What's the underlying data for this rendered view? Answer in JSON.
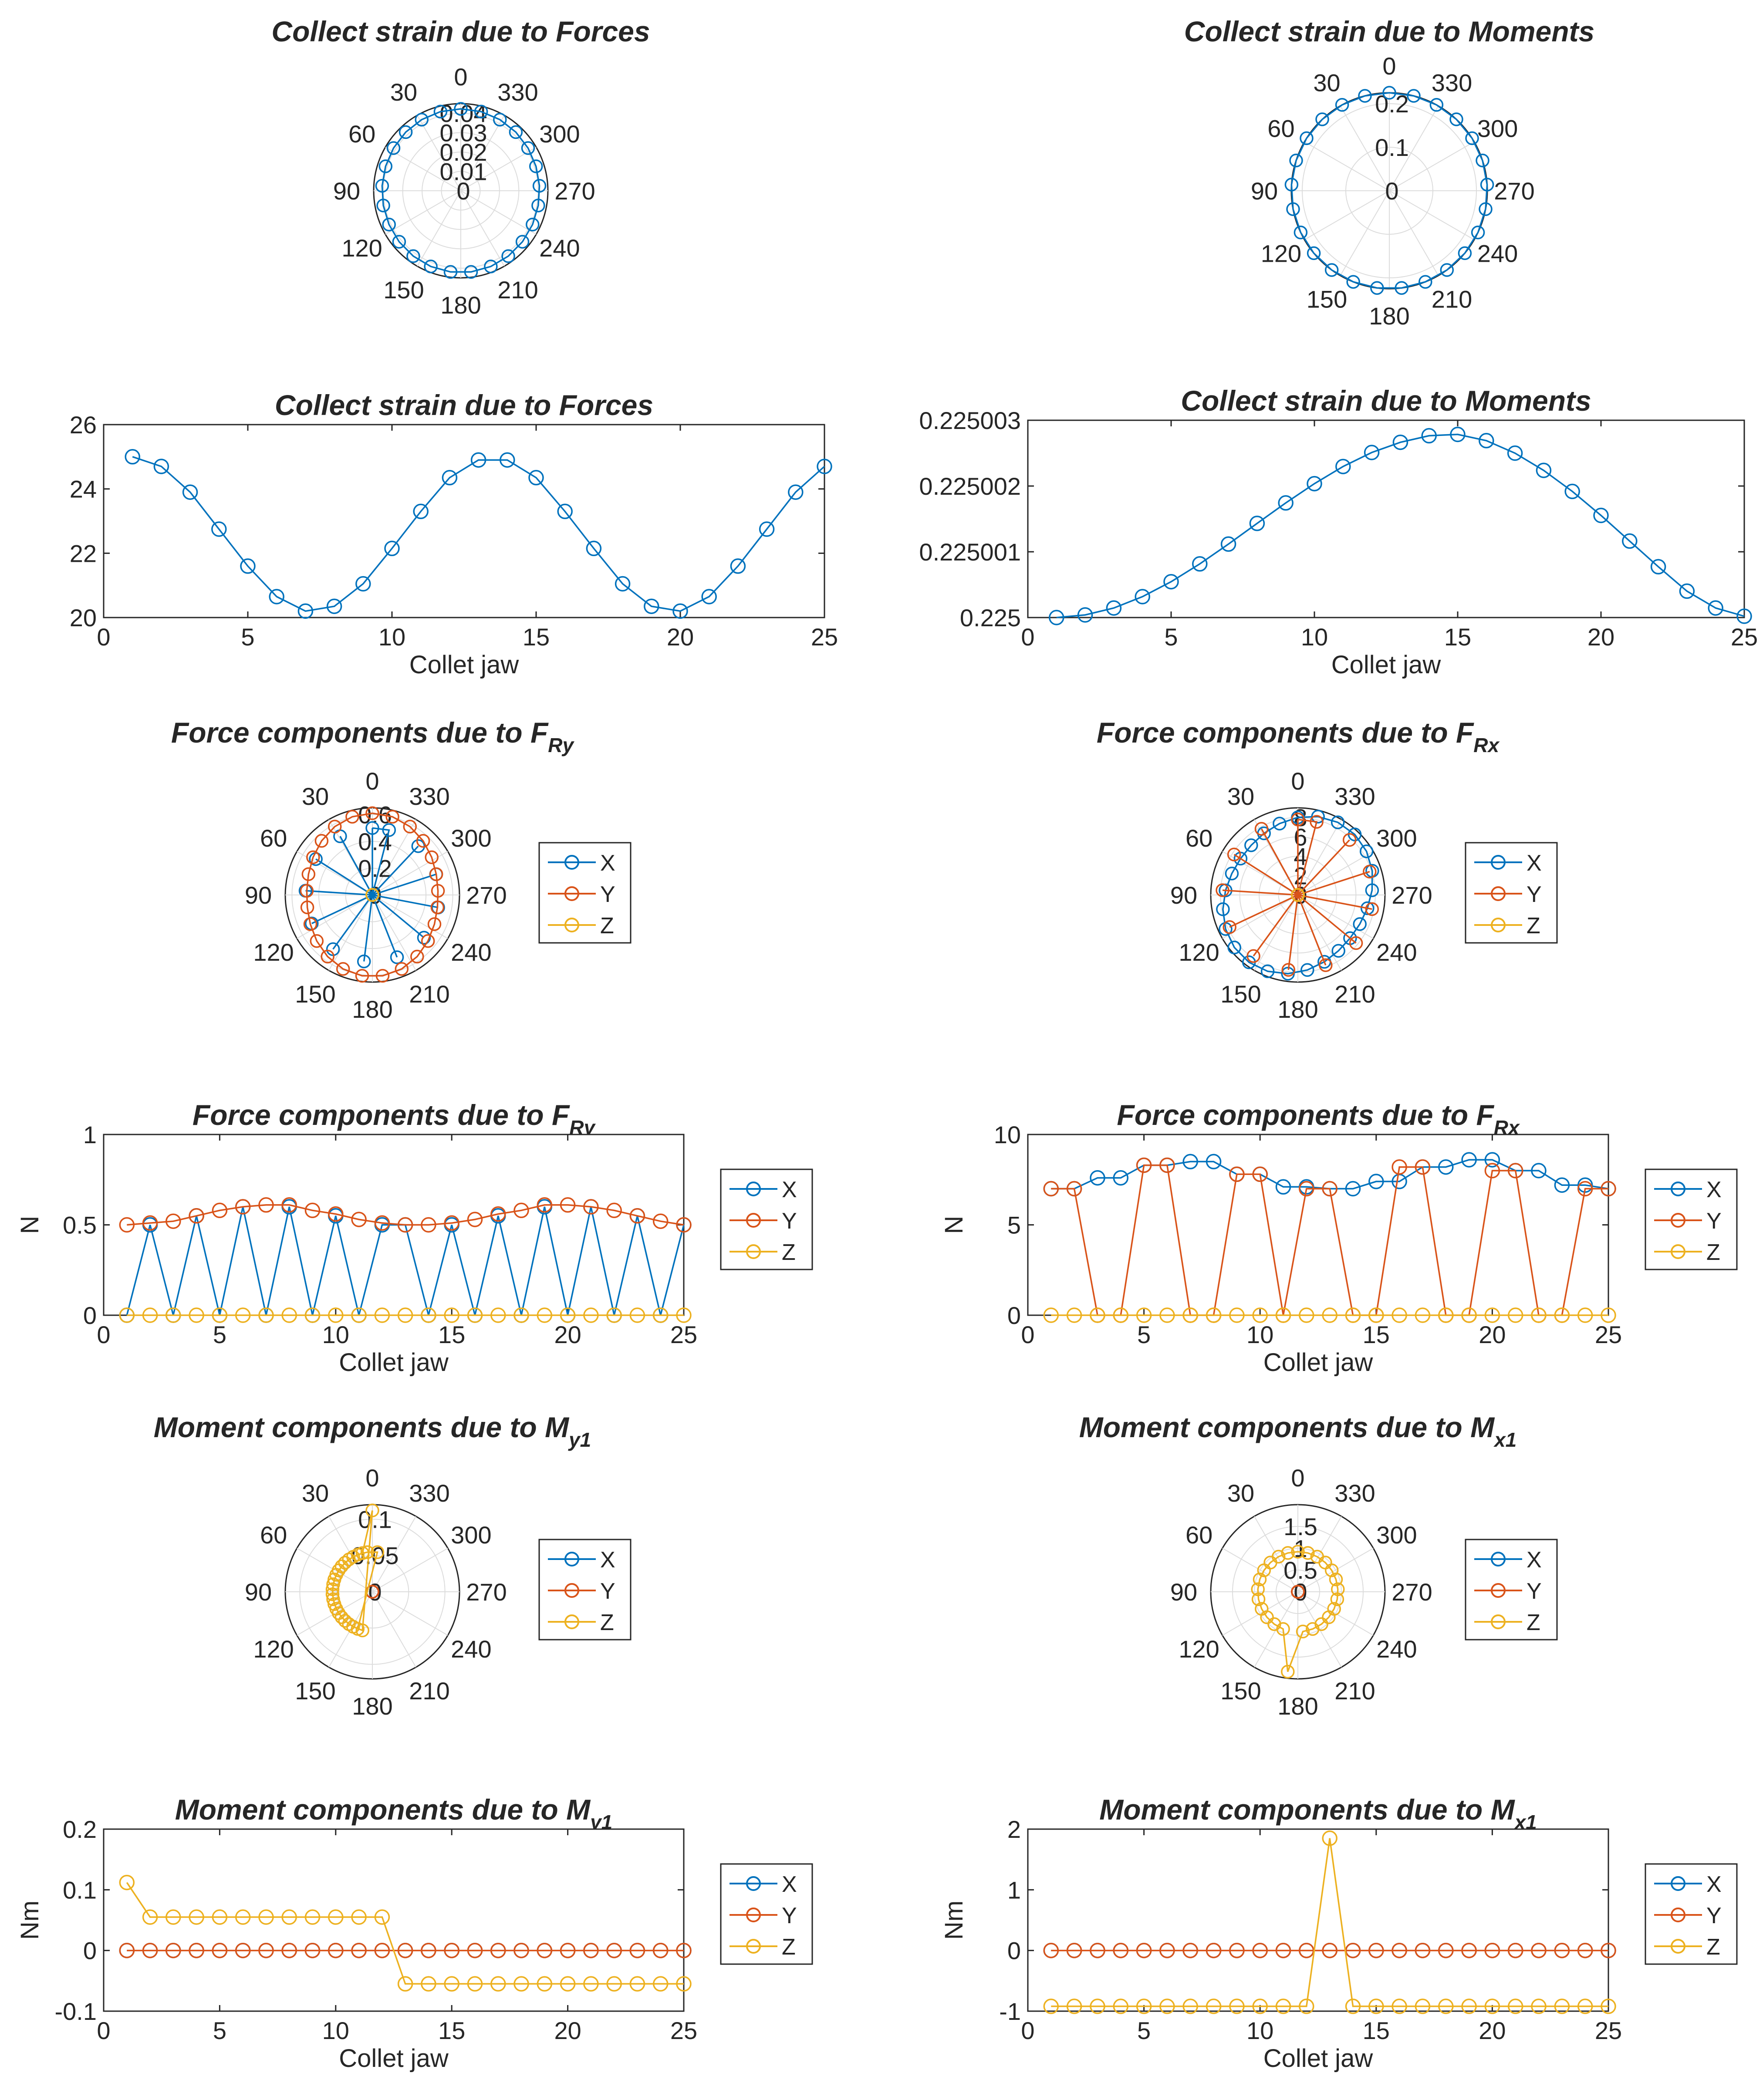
{
  "figure_title": "",
  "chart_data": [
    {
      "type": "polar",
      "title_main": "Collect strain due to Forces",
      "title_sub": "",
      "rticks": [
        0,
        0.01,
        0.02,
        0.03,
        0.04
      ],
      "rmax": 0.045,
      "thetaticks": [
        "0",
        "30",
        "60",
        "90",
        "120",
        "150",
        "180",
        "210",
        "240",
        "270",
        "300",
        "330"
      ],
      "series": [
        {
          "name": "strain",
          "color": "#0072BD",
          "mode": "sin2",
          "center": 0.0415,
          "amp": 0.0008,
          "phase": 0
        }
      ]
    },
    {
      "type": "polar",
      "title_main": "Collect strain due to Moments",
      "title_sub": "",
      "rticks": [
        0,
        0.1,
        0.2
      ],
      "rmax": 0.225,
      "thetaticks": [
        "0",
        "30",
        "60",
        "90",
        "120",
        "150",
        "180",
        "210",
        "240",
        "270",
        "300",
        "330"
      ],
      "series": [
        {
          "name": "strain",
          "color": "#0072BD",
          "mode": "const",
          "value": 0.225
        }
      ]
    },
    {
      "type": "line",
      "title_main": "Collect strain due to Forces",
      "title_sub": "",
      "xlabel": "Collet jaw",
      "ylabel": "",
      "xlim": [
        0,
        25
      ],
      "ylim": [
        20,
        26
      ],
      "xticks": [
        0,
        5,
        10,
        15,
        20,
        25
      ],
      "yticks": [
        20,
        22,
        24,
        26
      ],
      "x": [
        1,
        2,
        3,
        4,
        5,
        6,
        7,
        8,
        9,
        10,
        11,
        12,
        13,
        14,
        15,
        16,
        17,
        18,
        19,
        20,
        21,
        22,
        23,
        24,
        25
      ],
      "series": [
        {
          "name": "strain",
          "color": "#0072BD",
          "values": [
            25.0,
            24.7,
            23.9,
            22.75,
            21.6,
            20.65,
            20.2,
            20.35,
            21.05,
            22.15,
            23.3,
            24.35,
            24.9,
            24.9,
            24.35,
            23.3,
            22.15,
            21.05,
            20.35,
            20.2,
            20.65,
            21.6,
            22.75,
            23.9,
            24.7
          ]
        }
      ],
      "legend": []
    },
    {
      "type": "line",
      "title_main": "Collect strain due to Moments",
      "title_sub": "",
      "xlabel": "Collet jaw",
      "ylabel": "",
      "xlim": [
        0,
        25
      ],
      "ylim": [
        0.225,
        0.225003
      ],
      "xticks": [
        0,
        5,
        10,
        15,
        20,
        25
      ],
      "yticks": [
        0.225,
        0.225001,
        0.225002,
        0.225003
      ],
      "ytick_labels": [
        "0.225",
        "0.225001",
        "0.225002",
        "0.225003"
      ],
      "x": [
        1,
        2,
        3,
        4,
        5,
        6,
        7,
        8,
        9,
        10,
        11,
        12,
        13,
        14,
        15,
        16,
        17,
        18,
        19,
        20,
        21,
        22,
        23,
        24,
        25
      ],
      "series": [
        {
          "name": "strain",
          "color": "#0072BD",
          "values": [
            0.225,
            0.22500004,
            0.225000145,
            0.225000318,
            0.225000545,
            0.225000816,
            0.225001117,
            0.225001432,
            0.225001743,
            0.225002036,
            0.225002297,
            0.22500251,
            0.225002665,
            0.225002765,
            0.225002785,
            0.22500269,
            0.2250025,
            0.225002238,
            0.225001918,
            0.225001553,
            0.225001163,
            0.225000773,
            0.225000401,
            0.225000145,
            0.22500002
          ]
        }
      ],
      "legend": []
    },
    {
      "type": "polar",
      "title_main": "Force components due to F",
      "title_sub": "Ry",
      "rticks": [
        0,
        0.2,
        0.4,
        0.6
      ],
      "rmax": 0.65,
      "thetaticks": [
        "0",
        "30",
        "60",
        "90",
        "120",
        "150",
        "180",
        "210",
        "240",
        "270",
        "300",
        "330"
      ],
      "series": [
        {
          "name": "X",
          "color": "#0072BD",
          "mode": "alt",
          "even": 0.5,
          "odd": 0
        },
        {
          "name": "Y",
          "color": "#D95319",
          "mode": "sin2",
          "center": 0.55,
          "amp": 0.06,
          "phase": 0
        },
        {
          "name": "Z",
          "color": "#EDB120",
          "mode": "const",
          "value": 0
        }
      ],
      "legend": [
        "X",
        "Y",
        "Z"
      ]
    },
    {
      "type": "polar",
      "title_main": "Force components due to F",
      "title_sub": "Rx",
      "rticks": [
        0,
        2,
        4,
        6,
        8
      ],
      "rmax": 9,
      "thetaticks": [
        "0",
        "30",
        "60",
        "90",
        "120",
        "150",
        "180",
        "210",
        "240",
        "270",
        "300",
        "330"
      ],
      "series": [
        {
          "name": "X",
          "color": "#0072BD",
          "mode": "sin2",
          "center": 7.8,
          "amp": 0.8,
          "phase": 1.3
        },
        {
          "name": "Y",
          "color": "#D95319",
          "mode": "alt",
          "even": 7.8,
          "odd": 0
        },
        {
          "name": "Z",
          "color": "#EDB120",
          "mode": "const",
          "value": 0
        }
      ],
      "legend": [
        "X",
        "Y",
        "Z"
      ]
    },
    {
      "type": "line",
      "title_main": "Force components due to F",
      "title_sub": "Ry",
      "xlabel": "Collet jaw",
      "ylabel": "N",
      "xlim": [
        0,
        25
      ],
      "ylim": [
        0,
        1
      ],
      "xticks": [
        0,
        5,
        10,
        15,
        20,
        25
      ],
      "yticks": [
        0,
        0.5,
        1
      ],
      "x": [
        1,
        2,
        3,
        4,
        5,
        6,
        7,
        8,
        9,
        10,
        11,
        12,
        13,
        14,
        15,
        16,
        17,
        18,
        19,
        20,
        21,
        22,
        23,
        24,
        25
      ],
      "series": [
        {
          "name": "X",
          "color": "#0072BD",
          "values": [
            0,
            0.5,
            0,
            0.55,
            0,
            0.6,
            0,
            0.6,
            0,
            0.55,
            0,
            0.5,
            0.5,
            0,
            0.5,
            0,
            0.55,
            0,
            0.6,
            0,
            0.6,
            0,
            0.55,
            0,
            0.5
          ]
        },
        {
          "name": "Y",
          "color": "#D95319",
          "values": [
            0.5,
            0.51,
            0.52,
            0.55,
            0.58,
            0.6,
            0.61,
            0.61,
            0.58,
            0.56,
            0.53,
            0.51,
            0.5,
            0.5,
            0.51,
            0.53,
            0.56,
            0.58,
            0.61,
            0.61,
            0.6,
            0.58,
            0.55,
            0.52,
            0.5
          ]
        },
        {
          "name": "Z",
          "color": "#EDB120",
          "values": [
            0,
            0,
            0,
            0,
            0,
            0,
            0,
            0,
            0,
            0,
            0,
            0,
            0,
            0,
            0,
            0,
            0,
            0,
            0,
            0,
            0,
            0,
            0,
            0,
            0
          ]
        }
      ],
      "legend": [
        "X",
        "Y",
        "Z"
      ]
    },
    {
      "type": "line",
      "title_main": "Force components due to F",
      "title_sub": "Rx",
      "xlabel": "Collet jaw",
      "ylabel": "N",
      "xlim": [
        0,
        25
      ],
      "ylim": [
        0,
        10
      ],
      "xticks": [
        0,
        5,
        10,
        15,
        20,
        25
      ],
      "yticks": [
        0,
        5,
        10
      ],
      "x": [
        1,
        2,
        3,
        4,
        5,
        6,
        7,
        8,
        9,
        10,
        11,
        12,
        13,
        14,
        15,
        16,
        17,
        18,
        19,
        20,
        21,
        22,
        23,
        24,
        25
      ],
      "series": [
        {
          "name": "X",
          "color": "#0072BD",
          "values": [
            7.0,
            7.0,
            7.6,
            7.6,
            8.3,
            8.3,
            8.5,
            8.5,
            7.8,
            7.8,
            7.1,
            7.1,
            7.0,
            7.0,
            7.4,
            7.4,
            8.2,
            8.2,
            8.6,
            8.6,
            8.0,
            8.0,
            7.2,
            7.2,
            7.0
          ]
        },
        {
          "name": "Y",
          "color": "#D95319",
          "values": [
            7.0,
            7.0,
            0,
            0,
            8.3,
            8.3,
            0,
            0,
            7.8,
            7.8,
            0,
            7.0,
            7.0,
            0,
            0,
            8.2,
            8.2,
            0,
            0,
            8.0,
            8.0,
            0,
            0,
            7.0,
            7.0
          ]
        },
        {
          "name": "Z",
          "color": "#EDB120",
          "values": [
            0,
            0,
            0,
            0,
            0,
            0,
            0,
            0,
            0,
            0,
            0,
            0,
            0,
            0,
            0,
            0,
            0,
            0,
            0,
            0,
            0,
            0,
            0,
            0,
            0
          ]
        }
      ],
      "legend": [
        "X",
        "Y",
        "Z"
      ]
    },
    {
      "type": "polar",
      "title_main": "Moment components due to M",
      "title_sub": "y1",
      "rticks": [
        0,
        0.05,
        0.1
      ],
      "rmax": 0.12,
      "thetaticks": [
        "0",
        "30",
        "60",
        "90",
        "120",
        "150",
        "180",
        "210",
        "240",
        "270",
        "300",
        "330"
      ],
      "series": [
        {
          "name": "X",
          "color": "#0072BD",
          "mode": "const",
          "value": 0
        },
        {
          "name": "Y",
          "color": "#D95319",
          "mode": "const",
          "value": 0
        },
        {
          "name": "Z",
          "color": "#EDB120",
          "mode": "list",
          "values": [
            0.112,
            0.055,
            0.055,
            0.055,
            0.055,
            0.055,
            0.055,
            0.055,
            0.055,
            0.055,
            0.055,
            0.055,
            -0.055,
            -0.055,
            -0.055,
            -0.055,
            -0.055,
            -0.055,
            -0.055,
            -0.055,
            -0.055,
            -0.055,
            -0.055,
            -0.055,
            -0.055
          ]
        }
      ],
      "legend": [
        "X",
        "Y",
        "Z"
      ]
    },
    {
      "type": "polar",
      "title_main": "Moment components due to M",
      "title_sub": "x1",
      "rticks": [
        0,
        0.5,
        1,
        1.5
      ],
      "rmax": 2,
      "thetaticks": [
        "0",
        "30",
        "60",
        "90",
        "120",
        "150",
        "180",
        "210",
        "240",
        "270",
        "300",
        "330"
      ],
      "series": [
        {
          "name": "X",
          "color": "#0072BD",
          "mode": "const",
          "value": 0
        },
        {
          "name": "Y",
          "color": "#D95319",
          "mode": "const",
          "value": 0
        },
        {
          "name": "Z",
          "color": "#EDB120",
          "mode": "list",
          "values": [
            0.92,
            0.92,
            0.92,
            0.92,
            0.92,
            0.92,
            0.92,
            0.92,
            0.92,
            0.92,
            0.92,
            0.92,
            1.85,
            0.92,
            0.92,
            0.92,
            0.92,
            0.92,
            0.92,
            0.92,
            0.92,
            0.92,
            0.92,
            0.92,
            0.92
          ]
        }
      ],
      "legend": [
        "X",
        "Y",
        "Z"
      ]
    },
    {
      "type": "line",
      "title_main": "Moment components due to M",
      "title_sub": "y1",
      "xlabel": "Collet jaw",
      "ylabel": "Nm",
      "xlim": [
        0,
        25
      ],
      "ylim": [
        -0.1,
        0.2
      ],
      "xticks": [
        0,
        5,
        10,
        15,
        20,
        25
      ],
      "yticks": [
        -0.1,
        0,
        0.1,
        0.2
      ],
      "x": [
        1,
        2,
        3,
        4,
        5,
        6,
        7,
        8,
        9,
        10,
        11,
        12,
        13,
        14,
        15,
        16,
        17,
        18,
        19,
        20,
        21,
        22,
        23,
        24,
        25
      ],
      "series": [
        {
          "name": "X",
          "color": "#0072BD",
          "values": [
            0,
            0,
            0,
            0,
            0,
            0,
            0,
            0,
            0,
            0,
            0,
            0,
            0,
            0,
            0,
            0,
            0,
            0,
            0,
            0,
            0,
            0,
            0,
            0,
            0
          ]
        },
        {
          "name": "Y",
          "color": "#D95319",
          "values": [
            0,
            0,
            0,
            0,
            0,
            0,
            0,
            0,
            0,
            0,
            0,
            0,
            0,
            0,
            0,
            0,
            0,
            0,
            0,
            0,
            0,
            0,
            0,
            0,
            0
          ]
        },
        {
          "name": "Z",
          "color": "#EDB120",
          "values": [
            0.112,
            0.055,
            0.055,
            0.055,
            0.055,
            0.055,
            0.055,
            0.055,
            0.055,
            0.055,
            0.055,
            0.055,
            -0.055,
            -0.055,
            -0.055,
            -0.055,
            -0.055,
            -0.055,
            -0.055,
            -0.055,
            -0.055,
            -0.055,
            -0.055,
            -0.055,
            -0.055
          ]
        }
      ],
      "legend": [
        "X",
        "Y",
        "Z"
      ]
    },
    {
      "type": "line",
      "title_main": "Moment components due to M",
      "title_sub": "x1",
      "xlabel": "Collet jaw",
      "ylabel": "Nm",
      "xlim": [
        0,
        25
      ],
      "ylim": [
        -1,
        2
      ],
      "xticks": [
        0,
        5,
        10,
        15,
        20,
        25
      ],
      "yticks": [
        -1,
        0,
        1,
        2
      ],
      "x": [
        1,
        2,
        3,
        4,
        5,
        6,
        7,
        8,
        9,
        10,
        11,
        12,
        13,
        14,
        15,
        16,
        17,
        18,
        19,
        20,
        21,
        22,
        23,
        24,
        25
      ],
      "series": [
        {
          "name": "X",
          "color": "#0072BD",
          "values": [
            0,
            0,
            0,
            0,
            0,
            0,
            0,
            0,
            0,
            0,
            0,
            0,
            0,
            0,
            0,
            0,
            0,
            0,
            0,
            0,
            0,
            0,
            0,
            0,
            0
          ]
        },
        {
          "name": "Y",
          "color": "#D95319",
          "values": [
            0,
            0,
            0,
            0,
            0,
            0,
            0,
            0,
            0,
            0,
            0,
            0,
            0,
            0,
            0,
            0,
            0,
            0,
            0,
            0,
            0,
            0,
            0,
            0,
            0
          ]
        },
        {
          "name": "Z",
          "color": "#EDB120",
          "values": [
            -0.92,
            -0.92,
            -0.92,
            -0.92,
            -0.92,
            -0.92,
            -0.92,
            -0.92,
            -0.92,
            -0.92,
            -0.92,
            -0.92,
            1.85,
            -0.92,
            -0.92,
            -0.92,
            -0.92,
            -0.92,
            -0.92,
            -0.92,
            -0.92,
            -0.92,
            -0.92,
            -0.92,
            -0.92
          ]
        }
      ],
      "legend": [
        "X",
        "Y",
        "Z"
      ]
    }
  ]
}
